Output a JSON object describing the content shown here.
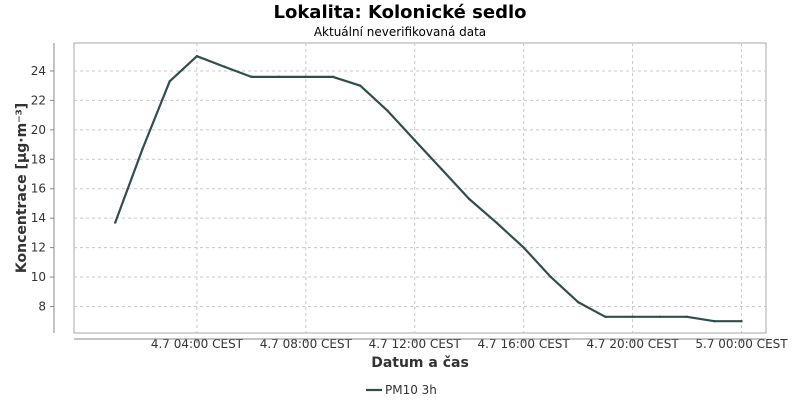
{
  "chart_data": {
    "type": "line",
    "title": "Lokalita: Kolonické sedlo",
    "subtitle": "Aktuální neverifikovaná data",
    "xlabel": "Datum a čas",
    "ylabel": "Koncentrace [µg·m⁻³]",
    "x_ticks": [
      "4.7 04:00 CEST",
      "4.7 08:00 CEST",
      "4.7 12:00 CEST",
      "4.7 16:00 CEST",
      "4.7 20:00 CEST",
      "5.7 00:00 CEST"
    ],
    "y_ticks": [
      8,
      10,
      12,
      14,
      16,
      18,
      20,
      22,
      24
    ],
    "ylim": [
      6.2,
      25.9
    ],
    "grid": true,
    "legend_position": "bottom-center",
    "series": [
      {
        "name": "PM10 3h",
        "color": "#2f4f4f",
        "x": [
          "4.7 01:00",
          "4.7 02:00",
          "4.7 03:00",
          "4.7 04:00",
          "4.7 05:00",
          "4.7 06:00",
          "4.7 07:00",
          "4.7 08:00",
          "4.7 09:00",
          "4.7 10:00",
          "4.7 11:00",
          "4.7 12:00",
          "4.7 13:00",
          "4.7 14:00",
          "4.7 15:00",
          "4.7 16:00",
          "4.7 17:00",
          "4.7 18:00",
          "4.7 19:00",
          "4.7 20:00",
          "4.7 21:00",
          "4.7 22:00",
          "4.7 23:00",
          "5.7 00:00"
        ],
        "values": [
          13.7,
          18.7,
          23.3,
          25.0,
          24.3,
          23.6,
          23.6,
          23.6,
          23.6,
          23.0,
          21.3,
          19.3,
          17.3,
          15.3,
          13.7,
          12.0,
          10.0,
          8.3,
          7.3,
          7.3,
          7.3,
          7.3,
          7.0,
          7.0
        ]
      }
    ]
  }
}
